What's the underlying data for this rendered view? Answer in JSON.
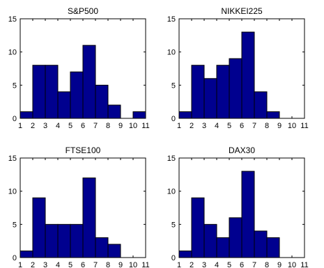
{
  "chart_data": [
    {
      "type": "bar",
      "title": "S&P500",
      "xlabel": "",
      "ylabel": "",
      "categories": [
        1.5,
        2.5,
        3.5,
        4.5,
        5.5,
        6.5,
        7.5,
        8.5,
        9.5,
        10.5
      ],
      "values": [
        1,
        8,
        8,
        4,
        7,
        11,
        5,
        2,
        0,
        1
      ],
      "xlim": [
        1,
        11
      ],
      "ylim": [
        0,
        15
      ],
      "xticks": [
        "1",
        "2",
        "3",
        "4",
        "5",
        "6",
        "7",
        "8",
        "9",
        "10",
        "11"
      ],
      "yticks": [
        "0",
        "5",
        "10",
        "15"
      ]
    },
    {
      "type": "bar",
      "title": "NIKKEI225",
      "xlabel": "",
      "ylabel": "",
      "categories": [
        1.5,
        2.5,
        3.5,
        4.5,
        5.5,
        6.5,
        7.5,
        8.5,
        9.5,
        10.5
      ],
      "values": [
        1,
        8,
        6,
        8,
        9,
        13,
        4,
        1,
        0,
        0
      ],
      "xlim": [
        1,
        11
      ],
      "ylim": [
        0,
        15
      ],
      "xticks": [
        "1",
        "2",
        "3",
        "4",
        "5",
        "6",
        "7",
        "8",
        "9",
        "10",
        "11"
      ],
      "yticks": [
        "0",
        "5",
        "10",
        "15"
      ]
    },
    {
      "type": "bar",
      "title": "FTSE100",
      "xlabel": "",
      "ylabel": "",
      "categories": [
        1.5,
        2.5,
        3.5,
        4.5,
        5.5,
        6.5,
        7.5,
        8.5,
        9.5,
        10.5
      ],
      "values": [
        1,
        9,
        5,
        5,
        5,
        12,
        3,
        2,
        0,
        0
      ],
      "xlim": [
        1,
        11
      ],
      "ylim": [
        0,
        15
      ],
      "xticks": [
        "1",
        "2",
        "3",
        "4",
        "5",
        "6",
        "7",
        "8",
        "9",
        "10",
        "11"
      ],
      "yticks": [
        "0",
        "5",
        "10",
        "15"
      ]
    },
    {
      "type": "bar",
      "title": "DAX30",
      "xlabel": "",
      "ylabel": "",
      "categories": [
        1.5,
        2.5,
        3.5,
        4.5,
        5.5,
        6.5,
        7.5,
        8.5,
        9.5,
        10.5
      ],
      "values": [
        1,
        9,
        5,
        3,
        6,
        13,
        4,
        3,
        0,
        0
      ],
      "xlim": [
        1,
        11
      ],
      "ylim": [
        0,
        15
      ],
      "xticks": [
        "1",
        "2",
        "3",
        "4",
        "5",
        "6",
        "7",
        "8",
        "9",
        "10",
        "11"
      ],
      "yticks": [
        "0",
        "5",
        "10",
        "15"
      ]
    }
  ],
  "colors": {
    "bar_fill": "#00008f",
    "bar_edge": "#000000"
  }
}
